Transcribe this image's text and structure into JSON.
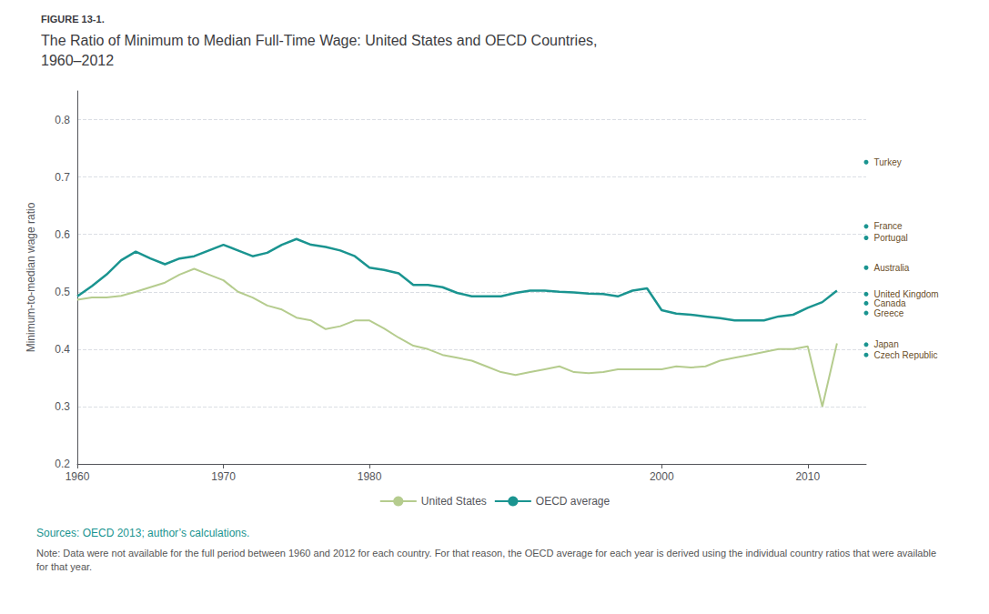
{
  "chart_data": {
    "type": "line",
    "label": "FIGURE 13-1.",
    "title": "The Ratio of Minimum to Median Full-Time Wage: United States and OECD Countries,\n1960–2012",
    "ylabel": "Minimum-to-median wage ratio",
    "xlim": [
      1960,
      2014
    ],
    "ylim": [
      0.2,
      0.85
    ],
    "xticks": [
      1960,
      1970,
      1980,
      2000,
      2010
    ],
    "yticks": [
      0.2,
      0.3,
      0.4,
      0.5,
      0.6,
      0.7,
      0.8
    ],
    "grid": true,
    "legend": "bottom",
    "x": [
      1960,
      1961,
      1962,
      1963,
      1964,
      1965,
      1966,
      1967,
      1968,
      1969,
      1970,
      1971,
      1972,
      1973,
      1974,
      1975,
      1976,
      1977,
      1978,
      1979,
      1980,
      1981,
      1982,
      1983,
      1984,
      1985,
      1986,
      1987,
      1988,
      1989,
      1990,
      1991,
      1992,
      1993,
      1994,
      1995,
      1996,
      1997,
      1998,
      1999,
      2000,
      2001,
      2002,
      2003,
      2004,
      2005,
      2006,
      2007,
      2008,
      2009,
      2010,
      2011,
      2012
    ],
    "series": [
      {
        "name": "United States",
        "color": "#b5cc8e",
        "values": [
          0.486,
          0.49,
          0.49,
          0.493,
          0.5,
          0.508,
          0.516,
          0.53,
          0.54,
          0.53,
          0.52,
          0.5,
          0.49,
          0.476,
          0.469,
          0.455,
          0.45,
          0.435,
          0.44,
          0.45,
          0.45,
          0.436,
          0.42,
          0.406,
          0.4,
          0.39,
          0.385,
          0.38,
          0.37,
          0.36,
          0.355,
          0.36,
          0.365,
          0.37,
          0.36,
          0.358,
          0.36,
          0.365,
          0.365,
          0.365,
          0.365,
          0.37,
          0.368,
          0.37,
          0.38,
          0.385,
          0.39,
          0.395,
          0.4,
          0.4,
          0.405,
          0.3,
          0.41
        ]
      },
      {
        "name": "OECD average",
        "color": "#1a9490",
        "values": [
          0.492,
          0.51,
          0.53,
          0.555,
          0.57,
          0.558,
          0.548,
          0.558,
          0.562,
          0.572,
          0.582,
          0.572,
          0.562,
          0.568,
          0.582,
          0.592,
          0.582,
          0.578,
          0.572,
          0.562,
          0.542,
          0.538,
          0.532,
          0.512,
          0.512,
          0.508,
          0.498,
          0.492,
          0.492,
          0.492,
          0.498,
          0.502,
          0.502,
          0.5,
          0.499,
          0.497,
          0.496,
          0.492,
          0.502,
          0.506,
          0.468,
          0.462,
          0.46,
          0.457,
          0.454,
          0.45,
          0.45,
          0.45,
          0.457,
          0.46,
          0.472,
          0.482,
          0.502
        ]
      }
    ],
    "annotations": [
      {
        "text": "Turkey",
        "y": 0.726
      },
      {
        "text": "France",
        "y": 0.614
      },
      {
        "text": "Portugal",
        "y": 0.594
      },
      {
        "text": "Australia",
        "y": 0.542
      },
      {
        "text": "United Kingdom",
        "y": 0.496
      },
      {
        "text": "Canada",
        "y": 0.48
      },
      {
        "text": "Greece",
        "y": 0.463
      },
      {
        "text": "Japan",
        "y": 0.408
      },
      {
        "text": "Czech Republic",
        "y": 0.39
      }
    ],
    "source": "Sources: OECD 2013; author’s calculations.",
    "note": "Note: Data were not available for the full period between 1960 and 2012 for each country. For that reason, the OECD average for each year is derived using the individual country ratios that were available for that year."
  }
}
